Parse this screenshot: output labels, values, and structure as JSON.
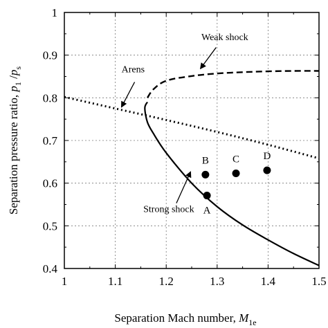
{
  "chart_data": {
    "type": "line",
    "xlabel": "Separation Mach number, ",
    "xlabel_var": "M",
    "xlabel_sub": "1e",
    "ylabel": "Separation pressure ratio, ",
    "ylabel_var1": "p",
    "ylabel_sub1": "1",
    "ylabel_sep": " /",
    "ylabel_var2": "p",
    "ylabel_sub2": "s",
    "xlim": [
      1.0,
      1.5
    ],
    "ylim": [
      0.4,
      1.0
    ],
    "xticks": [
      "1",
      "1.1",
      "1.2",
      "1.3",
      "1.4",
      "1.5"
    ],
    "yticks": [
      "0.4",
      "0.5",
      "0.6",
      "0.7",
      "0.8",
      "0.9",
      "1"
    ],
    "grid": true,
    "series": [
      {
        "name": "Arens",
        "style": "dotted",
        "x": [
          1.0,
          1.1,
          1.2,
          1.3,
          1.4,
          1.5
        ],
        "y": [
          0.802,
          0.775,
          0.748,
          0.72,
          0.69,
          0.658
        ]
      },
      {
        "name": "Weak shock",
        "style": "dashed",
        "x": [
          1.163,
          1.175,
          1.2,
          1.25,
          1.3,
          1.35,
          1.4,
          1.45,
          1.5
        ],
        "y": [
          0.8,
          0.82,
          0.84,
          0.851,
          0.857,
          0.86,
          0.862,
          0.863,
          0.863
        ]
      },
      {
        "name": "Strong shock",
        "style": "solid",
        "x": [
          1.163,
          1.158,
          1.163,
          1.175,
          1.2,
          1.25,
          1.3,
          1.35,
          1.4,
          1.45,
          1.5
        ],
        "y": [
          0.79,
          0.776,
          0.743,
          0.716,
          0.671,
          0.6,
          0.545,
          0.502,
          0.467,
          0.435,
          0.407
        ]
      }
    ],
    "points": [
      {
        "label": "A",
        "x": 1.28,
        "y": 0.571
      },
      {
        "label": "B",
        "x": 1.277,
        "y": 0.62
      },
      {
        "label": "C",
        "x": 1.337,
        "y": 0.623
      },
      {
        "label": "D",
        "x": 1.398,
        "y": 0.63
      }
    ],
    "annotations": [
      {
        "text": "Weak shock",
        "text_x": 1.315,
        "text_y": 0.935,
        "arrow_from": [
          1.298,
          0.918
        ],
        "arrow_to": [
          1.267,
          0.868
        ]
      },
      {
        "text": "Arens",
        "text_x": 1.135,
        "text_y": 0.86,
        "arrow_from": [
          1.138,
          0.837
        ],
        "arrow_to": [
          1.112,
          0.778
        ]
      },
      {
        "text": "Strong shock",
        "text_x": 1.205,
        "text_y": 0.532,
        "arrow_from": [
          1.22,
          0.553
        ],
        "arrow_to": [
          1.248,
          0.627
        ]
      }
    ]
  }
}
